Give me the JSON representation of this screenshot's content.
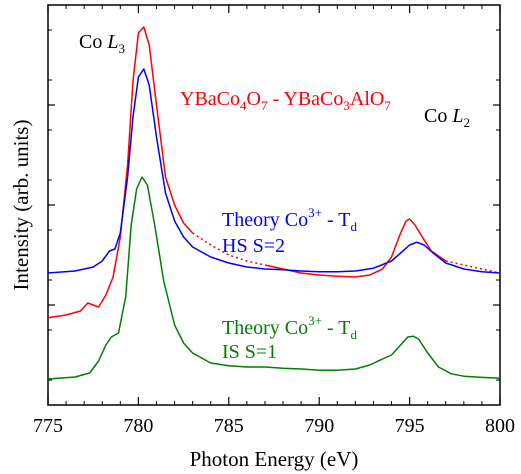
{
  "chart_data": {
    "type": "line",
    "title": "",
    "xlabel": "Photon Energy (eV)",
    "ylabel": "Intensity (arb. units)",
    "xlim": [
      775,
      800
    ],
    "ylim": [
      0,
      1
    ],
    "x_ticks": [
      775,
      780,
      785,
      790,
      795,
      800
    ],
    "y_ticks_shown": false,
    "grid": false,
    "annotations": {
      "peak_l3": {
        "prefix": "Co ",
        "italic": "L",
        "sub": "3"
      },
      "peak_l2": {
        "prefix": "Co ",
        "italic": "L",
        "sub": "2"
      },
      "experiment": {
        "parts": [
          "YBaCo",
          "4",
          "O",
          "7",
          " - YBaCo",
          "3",
          "AlO",
          "7"
        ],
        "color": "#ff0000"
      },
      "hs": {
        "line1_a": "Theory Co",
        "line1_sup": "3+",
        "line1_b": " - T",
        "line1_sub": "d",
        "line2": "HS S=2",
        "color": "#0000ff"
      },
      "is": {
        "line1_a": "Theory Co",
        "line1_sup": "3+",
        "line1_b": " - T",
        "line1_sub": "d",
        "line2": "IS S=1",
        "color": "#008000"
      }
    },
    "series": [
      {
        "color": "#ff0000",
        "x": [
          775.0,
          776.0,
          776.8,
          777.2,
          777.5,
          777.8,
          778.2,
          778.6,
          779.0,
          779.4,
          779.7,
          780.0,
          780.3,
          780.6,
          781.0,
          781.5,
          782.0,
          782.5,
          783.0,
          784.0,
          785.0,
          786.0,
          787.0,
          788.0,
          789.0,
          790.0,
          791.0,
          792.0,
          792.8,
          793.5,
          794.0,
          794.5,
          794.8,
          795.0,
          795.3,
          795.7,
          796.2,
          797.0,
          798.0,
          799.0,
          800.0
        ],
        "y": [
          0.218,
          0.225,
          0.235,
          0.255,
          0.25,
          0.245,
          0.275,
          0.32,
          0.42,
          0.6,
          0.81,
          0.93,
          0.945,
          0.9,
          0.75,
          0.57,
          0.5,
          0.455,
          0.43,
          0.4,
          0.375,
          0.36,
          0.35,
          0.34,
          0.33,
          0.325,
          0.322,
          0.32,
          0.325,
          0.34,
          0.37,
          0.43,
          0.46,
          0.465,
          0.45,
          0.42,
          0.385,
          0.36,
          0.35,
          0.34,
          0.33
        ],
        "dotted_x_ranges": [
          [
            783.0,
            786.8
          ],
          [
            797.0,
            800.0
          ]
        ]
      },
      {
        "color": "#0000ff",
        "x": [
          775.0,
          776.5,
          777.5,
          778.0,
          778.4,
          778.7,
          779.0,
          779.4,
          779.7,
          780.0,
          780.3,
          780.6,
          781.0,
          781.5,
          782.0,
          782.5,
          783.0,
          784.0,
          785.0,
          786.0,
          787.0,
          788.0,
          789.0,
          790.0,
          791.0,
          792.0,
          793.0,
          794.0,
          794.5,
          795.0,
          795.4,
          795.8,
          796.3,
          797.0,
          798.0,
          799.0,
          800.0
        ],
        "y": [
          0.33,
          0.335,
          0.345,
          0.36,
          0.385,
          0.39,
          0.43,
          0.57,
          0.72,
          0.82,
          0.84,
          0.8,
          0.67,
          0.53,
          0.46,
          0.42,
          0.395,
          0.37,
          0.355,
          0.345,
          0.34,
          0.338,
          0.335,
          0.333,
          0.333,
          0.335,
          0.342,
          0.36,
          0.38,
          0.4,
          0.407,
          0.4,
          0.38,
          0.355,
          0.34,
          0.333,
          0.33
        ],
        "dotted_x_ranges": []
      },
      {
        "color": "#008000",
        "x": [
          775.0,
          776.5,
          777.3,
          777.8,
          778.2,
          778.5,
          778.9,
          779.3,
          779.6,
          779.9,
          780.2,
          780.5,
          780.9,
          781.4,
          782.0,
          782.5,
          783.0,
          784.0,
          785.0,
          786.0,
          787.0,
          788.0,
          789.0,
          790.0,
          791.0,
          792.0,
          792.8,
          793.5,
          794.0,
          794.5,
          794.9,
          795.2,
          795.5,
          796.0,
          796.6,
          797.3,
          798.0,
          799.0,
          800.0
        ],
        "y": [
          0.065,
          0.07,
          0.08,
          0.11,
          0.15,
          0.17,
          0.18,
          0.27,
          0.45,
          0.54,
          0.57,
          0.55,
          0.45,
          0.31,
          0.2,
          0.155,
          0.13,
          0.105,
          0.098,
          0.095,
          0.095,
          0.092,
          0.09,
          0.087,
          0.087,
          0.09,
          0.1,
          0.115,
          0.125,
          0.15,
          0.17,
          0.172,
          0.165,
          0.13,
          0.095,
          0.078,
          0.072,
          0.069,
          0.067
        ],
        "dotted_x_ranges": []
      }
    ]
  }
}
